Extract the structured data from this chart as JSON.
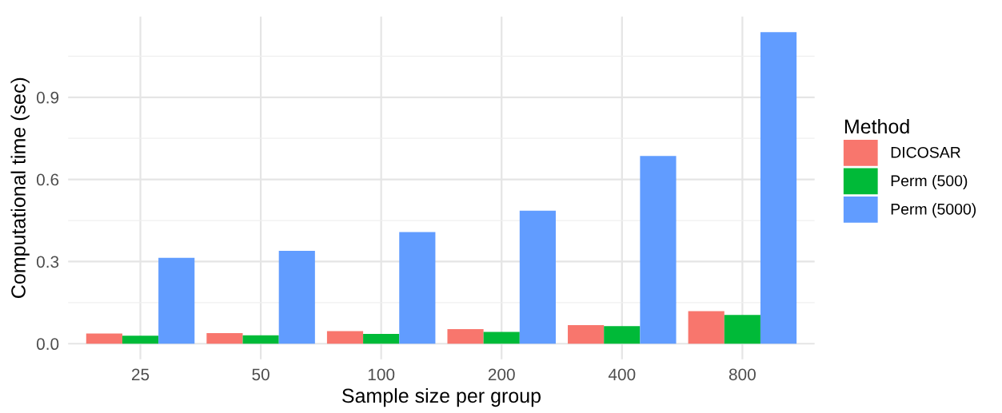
{
  "chart_data": {
    "type": "bar",
    "xlabel": "Sample size per group",
    "ylabel": "Computational time (sec)",
    "legend_title": "Method",
    "categories": [
      "25",
      "50",
      "100",
      "200",
      "400",
      "800"
    ],
    "series": [
      {
        "name": "DICOSAR",
        "color": "#f8766d",
        "values": [
          0.037,
          0.039,
          0.046,
          0.053,
          0.068,
          0.119
        ]
      },
      {
        "name": "Perm (500)",
        "color": "#00ba38",
        "values": [
          0.029,
          0.031,
          0.036,
          0.043,
          0.064,
          0.105
        ]
      },
      {
        "name": "Perm (5000)",
        "color": "#619cff",
        "values": [
          0.314,
          0.339,
          0.408,
          0.486,
          0.686,
          1.138
        ]
      }
    ],
    "ylim": [
      -0.057,
      1.195
    ],
    "yticks": [
      {
        "value": 0,
        "label": "0.0"
      },
      {
        "value": 0.15,
        "label": null
      },
      0.3,
      {
        "value": 0.45,
        "label": null
      },
      0.6,
      {
        "value": 0.75,
        "label": null
      },
      0.9,
      {
        "value": 1.05,
        "label": null
      }
    ],
    "grid": true,
    "legend": "right"
  }
}
